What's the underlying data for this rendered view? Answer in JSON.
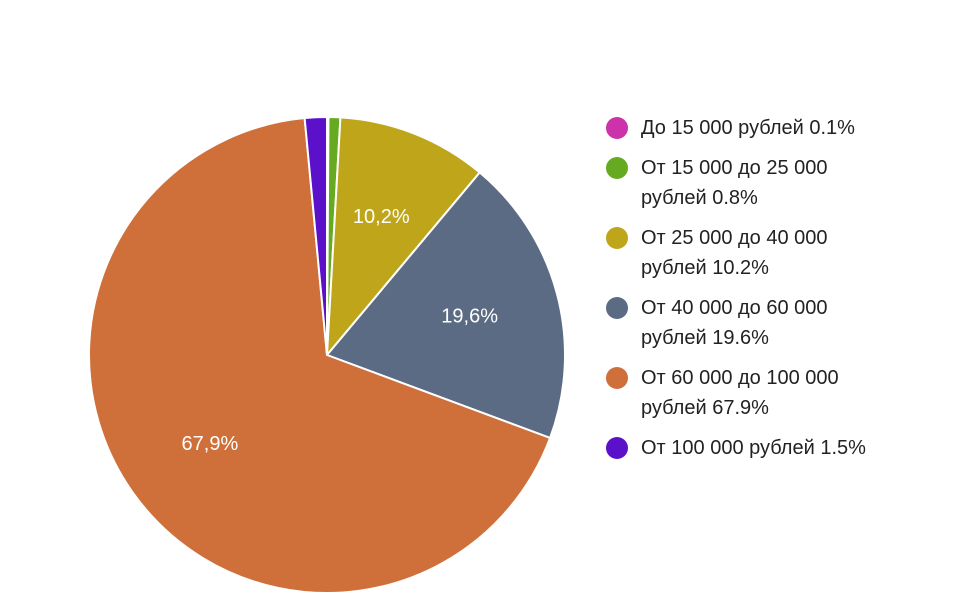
{
  "chart_data": {
    "type": "pie",
    "title": "",
    "start": "top",
    "direction": "clockwise",
    "legend_position": "right",
    "slices": [
      {
        "name": "До 15 000 рублей",
        "value": 0.1,
        "slice_label": "",
        "legend_label": "До 15 000 рублей 0.1%",
        "color": "#cc33aa"
      },
      {
        "name": "От 15 000 до 25 000 рублей",
        "value": 0.8,
        "slice_label": "",
        "legend_label": "От 15 000 до 25 000 рублей 0.8%",
        "color": "#66aa22"
      },
      {
        "name": "От 25 000 до 40 000 рублей",
        "value": 10.2,
        "slice_label": "10,2%",
        "legend_label": "От 25 000 до 40 000 рублей 10.2%",
        "color": "#bfa51a"
      },
      {
        "name": "От 40 000 до 60 000 рублей",
        "value": 19.6,
        "slice_label": "19,6%",
        "legend_label": "От 40 000 до 60 000 рублей 19.6%",
        "color": "#5b6b84"
      },
      {
        "name": "От 60 000 до 100 000 рублей",
        "value": 67.9,
        "slice_label": "67,9%",
        "legend_label": "От 60 000 до 100 000 рублей 67.9%",
        "color": "#cf6f3a"
      },
      {
        "name": "От 100 000 рублей",
        "value": 1.5,
        "slice_label": "",
        "legend_label": "От 100 000 рублей 1.5%",
        "color": "#5a11c9"
      }
    ]
  }
}
